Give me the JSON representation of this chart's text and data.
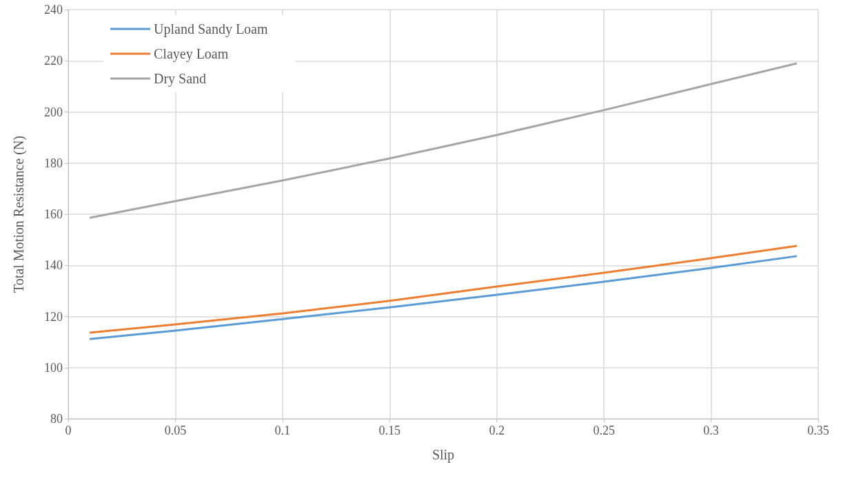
{
  "chart_data": {
    "type": "line",
    "xlabel": "Slip",
    "ylabel": "Total Motion Resistance (N)",
    "x": [
      0.01,
      0.05,
      0.1,
      0.15,
      0.2,
      0.25,
      0.3,
      0.34
    ],
    "series": [
      {
        "name": "Upland Sandy Loam",
        "color": "#5b9bd5",
        "values": [
          111.2,
          114.5,
          119,
          123.6,
          128.5,
          133.6,
          139,
          143.6
        ]
      },
      {
        "name": "Clayey Loam",
        "color": "#ed7d31",
        "values": [
          113.7,
          116.9,
          121.2,
          126.1,
          131.7,
          137.1,
          142.8,
          147.6
        ]
      },
      {
        "name": "Dry Sand",
        "color": "#a5a5a5",
        "values": [
          158.6,
          165.1,
          173.2,
          181.8,
          191,
          200.7,
          210.9,
          219
        ]
      }
    ],
    "xlim": [
      0,
      0.35
    ],
    "xticks": [
      0,
      0.05,
      0.1,
      0.15,
      0.2,
      0.25,
      0.3,
      0.35
    ],
    "ylim": [
      80,
      240
    ],
    "yticks": [
      80,
      100,
      120,
      140,
      160,
      180,
      200,
      220,
      240
    ],
    "grid": true,
    "legend": "top left",
    "marker": "none",
    "line_style": "solid"
  }
}
